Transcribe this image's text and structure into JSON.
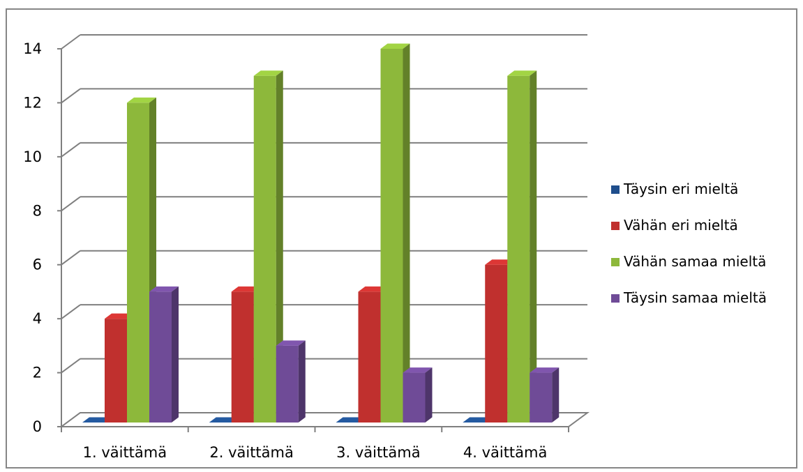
{
  "chart_data": {
    "type": "bar",
    "categories": [
      "1. väittämä",
      "2. väittämä",
      "3. väittämä",
      "4. väittämä"
    ],
    "series": [
      {
        "name": "Täysin eri mieltä",
        "values": [
          0,
          0,
          0,
          0
        ],
        "color": "#1f4e8c"
      },
      {
        "name": "Vähän eri mieltä",
        "values": [
          4,
          5,
          5,
          6
        ],
        "color": "#c0302e"
      },
      {
        "name": "Vähän samaa mieltä",
        "values": [
          12,
          13,
          14,
          13
        ],
        "color": "#8db83b"
      },
      {
        "name": "Täysin samaa mieltä",
        "values": [
          5,
          3,
          2,
          2
        ],
        "color": "#6f4b97"
      }
    ],
    "ylim": [
      0,
      14
    ],
    "yticks": [
      0,
      2,
      4,
      6,
      8,
      10,
      12,
      14
    ],
    "grid": true,
    "legend_position": "right",
    "three_d": true
  }
}
